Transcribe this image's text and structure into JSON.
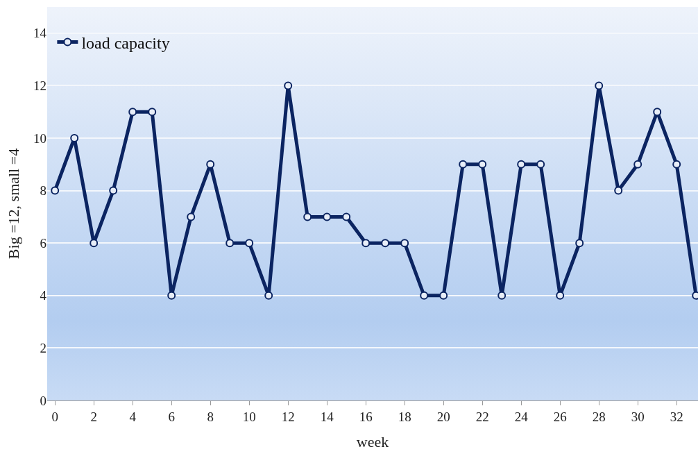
{
  "chart_data": {
    "type": "line",
    "xlabel": "week",
    "ylabel": "Big =12, small =4",
    "x": [
      0,
      1,
      2,
      3,
      4,
      5,
      6,
      7,
      8,
      9,
      10,
      11,
      12,
      13,
      14,
      15,
      16,
      17,
      18,
      19,
      20,
      21,
      22,
      23,
      24,
      25,
      26,
      27,
      28,
      29,
      30,
      31,
      32,
      33
    ],
    "series": [
      {
        "name": "load capacity",
        "color": "#0b2461",
        "values": [
          8,
          10,
          6,
          8,
          11,
          11,
          4,
          7,
          9,
          6,
          6,
          4,
          12,
          7,
          7,
          7,
          6,
          6,
          6,
          4,
          4,
          9,
          9,
          4,
          9,
          9,
          4,
          6,
          12,
          8,
          9,
          11,
          9,
          4
        ]
      }
    ],
    "xlim": [
      -0.4,
      33.1
    ],
    "xticks": [
      0,
      2,
      4,
      6,
      8,
      10,
      12,
      14,
      16,
      18,
      20,
      22,
      24,
      26,
      28,
      30,
      32
    ],
    "ylim": [
      0,
      15
    ],
    "yticks": [
      0,
      2,
      4,
      6,
      8,
      10,
      12,
      14
    ],
    "grid": "y",
    "legend": "top left",
    "marker": "circle",
    "line_style": "solid"
  }
}
